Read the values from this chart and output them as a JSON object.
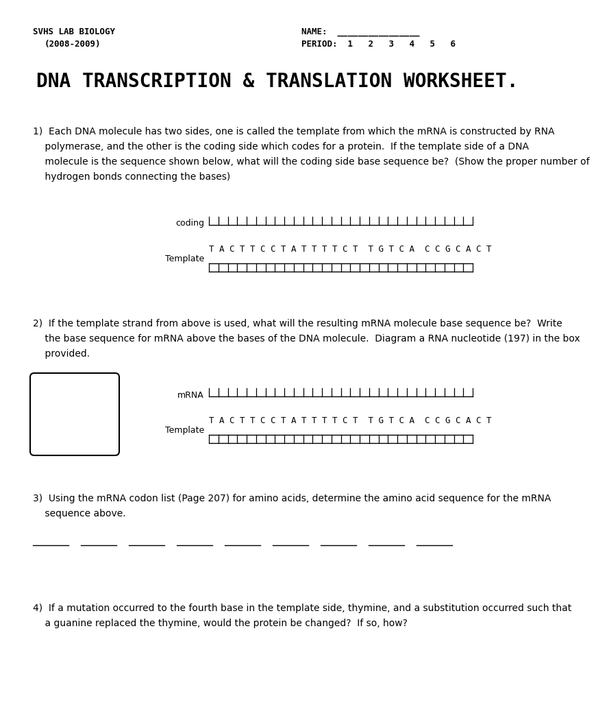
{
  "bg_color": "#ffffff",
  "header_left_line1": "SVHS LAB BIOLOGY",
  "header_left_line2": "(2008-2009)",
  "header_right_line1": "NAME:  ________________",
  "header_right_line2": "PERIOD:  1   2   3   4   5   6",
  "title": "DNA TRANSCRIPTION & TRANSLATION WORKSHEET.",
  "q1_line1": "1)  Each DNA molecule has two sides, one is called the template from which the mRNA is constructed by RNA",
  "q1_line2": "    polymerase, and the other is the coding side which codes for a protein.  If the template side of a DNA",
  "q1_line3": "    molecule is the sequence shown below, what will the coding side base sequence be?  (Show the proper number of",
  "q1_line4": "    hydrogen bonds connecting the bases)",
  "coding_label": "coding",
  "template_label": "Template",
  "template_seq": "T A C T T C C T A T T T T C T  T G T C A  C C G C A C T",
  "q2_line1": "2)  If the template strand from above is used, what will the resulting mRNA molecule base sequence be?  Write",
  "q2_line2": "    the base sequence for mRNA above the bases of the DNA molecule.  Diagram a RNA nucleotide (197) in the box",
  "q2_line3": "    provided.",
  "mrna_label": "mRNA",
  "template_label2": "Template",
  "template_seq2": "T A C T T C C T A T T T T C T  T G T C A  C C G C A C T",
  "q3_line1": "3)  Using the mRNA codon list (Page 207) for amino acids, determine the amino acid sequence for the mRNA",
  "q3_line2": "    sequence above.",
  "q4_line1": "4)  If a mutation occurred to the fourth base in the template side, thymine, and a substitution occurred such that",
  "q4_line2": "    a guanine replaced the thymine, would the protein be changed?  If so, how?",
  "blanks_count": 9,
  "body_fontsize": 10,
  "header_fontsize": 9,
  "title_fontsize": 20,
  "label_fontsize": 9,
  "seq_fontsize": 9
}
